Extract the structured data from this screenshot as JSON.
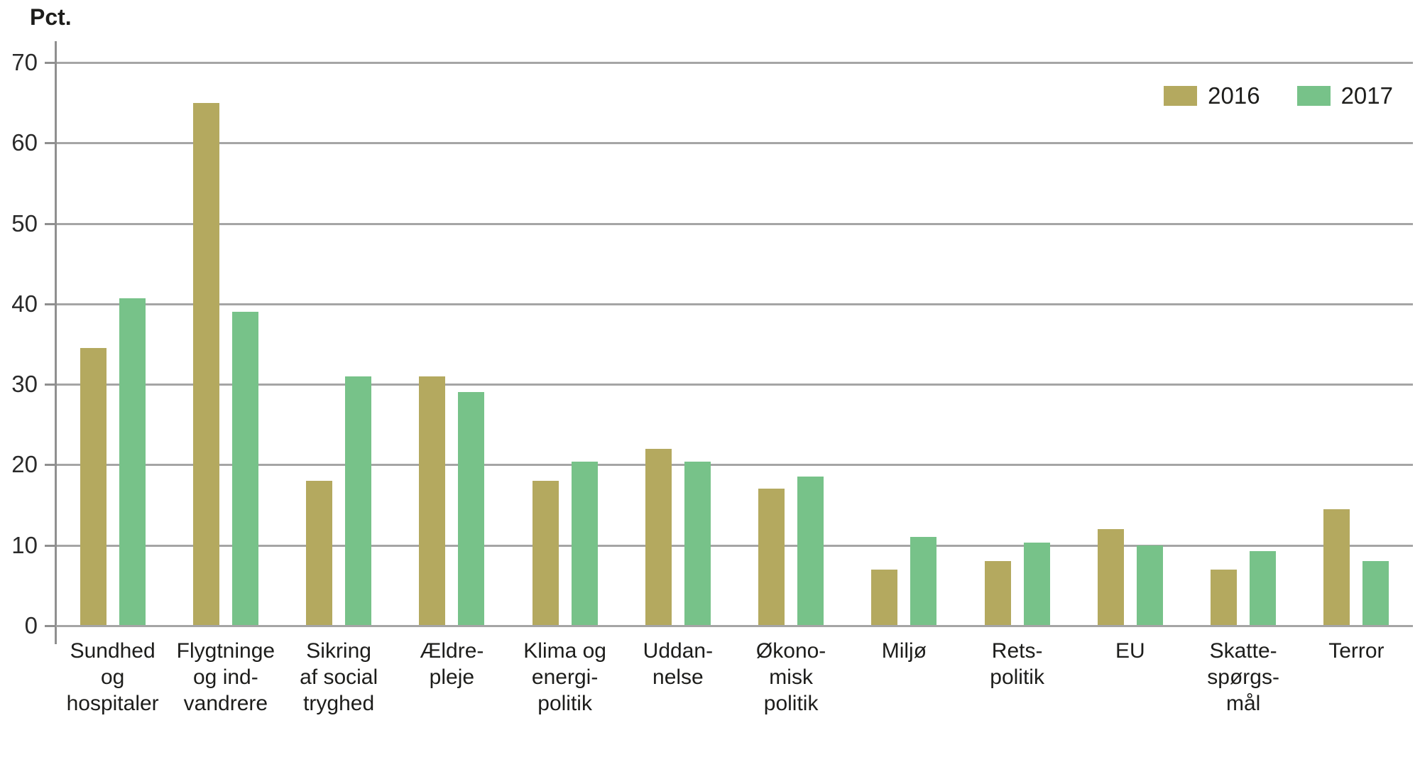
{
  "chart_data": {
    "type": "bar",
    "title": "",
    "xlabel": "",
    "ylabel": "Pct.",
    "ylim": [
      0,
      70
    ],
    "yticks": [
      70,
      60,
      50,
      40,
      30,
      20,
      10,
      0
    ],
    "grid": true,
    "legend_position": "top-right",
    "colors": {
      "gridline": "#a5a5a5",
      "axis": "#8f8f8f",
      "text": "#1d1d1b",
      "background": "#ffffff"
    },
    "categories": [
      {
        "id": "sundhed-og-hospitaler",
        "label": "Sundhed og hospitaler",
        "lines": [
          "Sundhed",
          "og",
          "hospitaler"
        ]
      },
      {
        "id": "flygtninge-og-indvandrere",
        "label": "Flygtninge og indvandrere",
        "lines": [
          "Flygtninge",
          "og ind-",
          "vandrere"
        ]
      },
      {
        "id": "sikring-af-social-tryghed",
        "label": "Sikring af social tryghed",
        "lines": [
          "Sikring",
          "af social",
          "tryghed"
        ]
      },
      {
        "id": "aeldrepleje",
        "label": "Ældrepleje",
        "lines": [
          "Ældre-",
          "pleje"
        ]
      },
      {
        "id": "klima-og-energipolitik",
        "label": "Klima og energipolitik",
        "lines": [
          "Klima og",
          "energi-",
          "politik"
        ]
      },
      {
        "id": "uddannelse",
        "label": "Uddannelse",
        "lines": [
          "Uddan-",
          "nelse"
        ]
      },
      {
        "id": "oekonomisk-politik",
        "label": "Økonomisk politik",
        "lines": [
          "Økono-",
          "misk",
          "politik"
        ]
      },
      {
        "id": "miljoe",
        "label": "Miljø",
        "lines": [
          "Miljø"
        ]
      },
      {
        "id": "retspolitik",
        "label": "Retspolitik",
        "lines": [
          "Rets-",
          "politik"
        ]
      },
      {
        "id": "eu",
        "label": "EU",
        "lines": [
          "EU"
        ]
      },
      {
        "id": "skattespoergsmaal",
        "label": "Skattespørgsmål",
        "lines": [
          "Skatte-",
          "spørgs-",
          "mål"
        ]
      },
      {
        "id": "terror",
        "label": "Terror",
        "lines": [
          "Terror"
        ]
      }
    ],
    "series": [
      {
        "name": "2016",
        "color": "#b4a95f",
        "values": [
          34.5,
          65,
          18,
          31,
          18,
          22,
          17,
          7,
          8,
          12,
          7,
          14.5
        ]
      },
      {
        "name": "2017",
        "color": "#77c289",
        "values": [
          40.7,
          39,
          31,
          29,
          20.4,
          20.4,
          18.5,
          11,
          10.3,
          10,
          9.3,
          8
        ]
      }
    ]
  }
}
